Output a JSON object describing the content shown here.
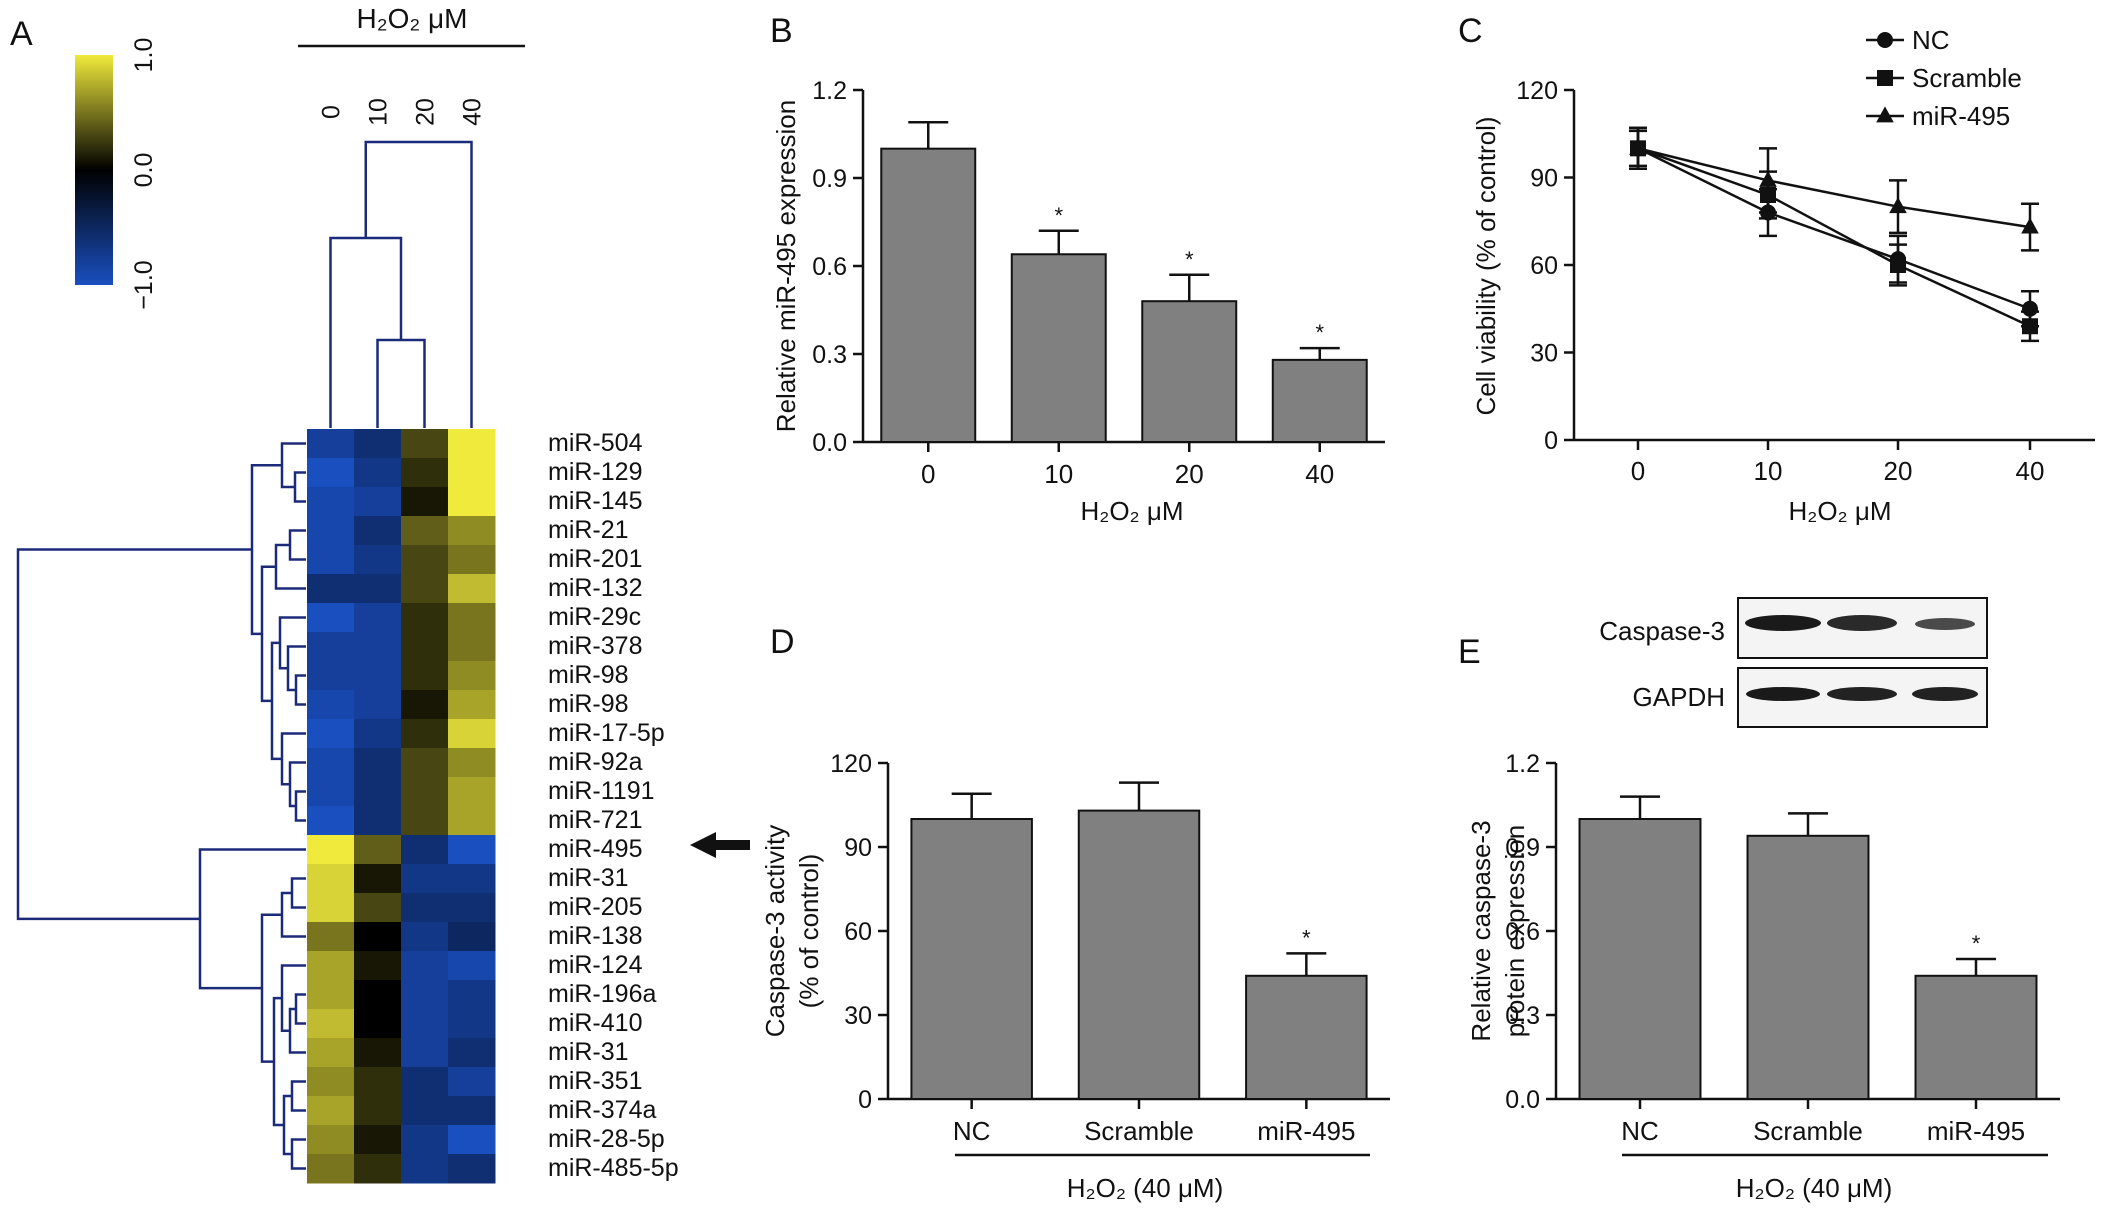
{
  "panel_letters": [
    "A",
    "B",
    "C",
    "D",
    "E"
  ],
  "heatmap": {
    "header": "H₂O₂ μM",
    "columns": [
      "0",
      "10",
      "20",
      "40"
    ],
    "scale_ticks": [
      "1.0",
      "0.0",
      "−1.0"
    ],
    "rows": [
      "miR-504",
      "miR-129",
      "miR-145",
      "miR-21",
      "miR-201",
      "miR-132",
      "miR-29c",
      "miR-378",
      "miR-98",
      "miR-98",
      "miR-17-5p",
      "miR-92a",
      "miR-1191",
      "miR-721",
      "miR-495",
      "miR-31",
      "miR-205",
      "miR-138",
      "miR-124",
      "miR-196a",
      "miR-410",
      "miR-31",
      "miR-351",
      "miR-374a",
      "miR-28-5p",
      "miR-485-5p"
    ],
    "highlighted_row": "miR-495",
    "colors": {
      "high": "#f0ea3c",
      "mid": "#000000",
      "low": "#1a4fc0"
    }
  },
  "chart_data": [
    {
      "panel": "A",
      "type": "heatmap",
      "x": [
        "0",
        "10",
        "20",
        "40"
      ],
      "y": [
        "miR-504",
        "miR-129",
        "miR-145",
        "miR-21",
        "miR-201",
        "miR-132",
        "miR-29c",
        "miR-378",
        "miR-98",
        "miR-98",
        "miR-17-5p",
        "miR-92a",
        "miR-1191",
        "miR-721",
        "miR-495",
        "miR-31",
        "miR-205",
        "miR-138",
        "miR-124",
        "miR-196a",
        "miR-410",
        "miR-31",
        "miR-351",
        "miR-374a",
        "miR-28-5p",
        "miR-485-5p"
      ],
      "values": [
        [
          -0.8,
          -0.6,
          0.3,
          1.0
        ],
        [
          -1.0,
          -0.7,
          0.2,
          1.0
        ],
        [
          -0.9,
          -0.8,
          0.1,
          1.0
        ],
        [
          -0.9,
          -0.6,
          0.4,
          0.6
        ],
        [
          -0.9,
          -0.7,
          0.3,
          0.5
        ],
        [
          -0.6,
          -0.6,
          0.3,
          0.8
        ],
        [
          -1.0,
          -0.8,
          0.2,
          0.5
        ],
        [
          -0.8,
          -0.8,
          0.2,
          0.5
        ],
        [
          -0.8,
          -0.8,
          0.2,
          0.6
        ],
        [
          -0.9,
          -0.8,
          0.1,
          0.7
        ],
        [
          -1.0,
          -0.7,
          0.2,
          0.9
        ],
        [
          -0.9,
          -0.6,
          0.3,
          0.6
        ],
        [
          -0.9,
          -0.6,
          0.3,
          0.7
        ],
        [
          -1.0,
          -0.6,
          0.3,
          0.7
        ],
        [
          1.0,
          0.4,
          -0.6,
          -1.0
        ],
        [
          0.9,
          0.1,
          -0.7,
          -0.7
        ],
        [
          0.9,
          0.3,
          -0.6,
          -0.6
        ],
        [
          0.5,
          0.0,
          -0.7,
          -0.5
        ],
        [
          0.7,
          0.1,
          -0.8,
          -0.9
        ],
        [
          0.7,
          0.0,
          -0.8,
          -0.7
        ],
        [
          0.8,
          0.0,
          -0.8,
          -0.7
        ],
        [
          0.7,
          0.1,
          -0.8,
          -0.6
        ],
        [
          0.6,
          0.2,
          -0.6,
          -0.8
        ],
        [
          0.7,
          0.2,
          -0.6,
          -0.6
        ],
        [
          0.6,
          0.1,
          -0.7,
          -1.0
        ],
        [
          0.5,
          0.2,
          -0.7,
          -0.6
        ]
      ],
      "colorbar": {
        "min": -1.0,
        "max": 1.0,
        "ticks": [
          "1.0",
          "0.0",
          "−1.0"
        ]
      }
    },
    {
      "panel": "B",
      "type": "bar",
      "categories": [
        "0",
        "10",
        "20",
        "40"
      ],
      "values": [
        1.0,
        0.64,
        0.48,
        0.28
      ],
      "errors": [
        0.09,
        0.08,
        0.09,
        0.04
      ],
      "significance": [
        "",
        "*",
        "*",
        "*"
      ],
      "ylabel": "Relative miR-495 expression",
      "xlabel": "H₂O₂ μM",
      "ylim": [
        0,
        1.2
      ],
      "yticks": [
        "0.0",
        "0.3",
        "0.6",
        "0.9",
        "1.2"
      ]
    },
    {
      "panel": "C",
      "type": "line",
      "x": [
        "0",
        "10",
        "20",
        "40"
      ],
      "series": [
        {
          "name": "NC",
          "marker": "circle",
          "values": [
            100,
            78,
            62,
            45
          ],
          "errors": [
            7,
            8,
            8,
            6
          ]
        },
        {
          "name": "Scramble",
          "marker": "square",
          "values": [
            100,
            84,
            60,
            39
          ],
          "errors": [
            6,
            8,
            7,
            5
          ]
        },
        {
          "name": "miR-495",
          "marker": "triangle",
          "values": [
            100,
            89,
            80,
            73
          ],
          "errors": [
            7,
            11,
            9,
            8
          ]
        }
      ],
      "ylabel": "Cell viability (% of control)",
      "xlabel": "H₂O₂ μM",
      "ylim": [
        0,
        120
      ],
      "yticks": [
        "0",
        "30",
        "60",
        "90",
        "120"
      ],
      "legend": "top-right"
    },
    {
      "panel": "D",
      "type": "bar",
      "categories": [
        "NC",
        "Scramble",
        "miR-495"
      ],
      "values": [
        100,
        103,
        44
      ],
      "errors": [
        9,
        10,
        8
      ],
      "significance": [
        "",
        "",
        "*"
      ],
      "ylabel": "Caspase-3 activity (% of control)",
      "xlabel": "H₂O₂ (40 μM)",
      "ylim": [
        0,
        120
      ],
      "yticks": [
        "0",
        "30",
        "60",
        "90",
        "120"
      ]
    },
    {
      "panel": "E",
      "type": "bar",
      "categories": [
        "NC",
        "Scramble",
        "miR-495"
      ],
      "values": [
        1.0,
        0.94,
        0.44
      ],
      "errors": [
        0.08,
        0.08,
        0.06
      ],
      "significance": [
        "",
        "",
        "*"
      ],
      "ylabel": "Relative caspase-3 protein expression",
      "xlabel": "H₂O₂ (40 μM)",
      "ylim": [
        0,
        1.2
      ],
      "yticks": [
        "0.0",
        "0.3",
        "0.6",
        "0.9",
        "1.2"
      ],
      "blot_labels": [
        "Caspase-3",
        "GAPDH"
      ]
    }
  ],
  "blot": {
    "labels": [
      "Caspase-3",
      "GAPDH"
    ]
  },
  "styles": {
    "bar_fill": "#808080",
    "bar_stroke": "#111111",
    "dendrogram": "#1c2a7a"
  }
}
